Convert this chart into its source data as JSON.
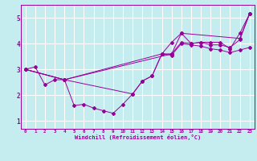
{
  "title": "",
  "xlabel": "Windchill (Refroidissement éolien,°C)",
  "background_color": "#c5edf0",
  "line_color": "#990099",
  "grid_color": "#ffffff",
  "xlim": [
    -0.5,
    23.5
  ],
  "ylim": [
    0.7,
    5.5
  ],
  "xticks": [
    0,
    1,
    2,
    3,
    4,
    5,
    6,
    7,
    8,
    9,
    10,
    11,
    12,
    13,
    14,
    15,
    16,
    17,
    18,
    19,
    20,
    21,
    22,
    23
  ],
  "yticks": [
    1,
    2,
    3,
    4,
    5
  ],
  "lines": [
    {
      "x": [
        0,
        1,
        2,
        3,
        4,
        5,
        6,
        7,
        8,
        9,
        10,
        11,
        12,
        13,
        14,
        15,
        16,
        17,
        18,
        19,
        20,
        21,
        22,
        23
      ],
      "y": [
        3.0,
        3.1,
        2.4,
        2.6,
        2.6,
        1.6,
        1.65,
        1.5,
        1.4,
        1.3,
        1.65,
        2.05,
        2.55,
        2.75,
        3.6,
        4.05,
        4.4,
        4.0,
        4.05,
        4.05,
        4.05,
        3.8,
        4.4,
        5.15
      ]
    },
    {
      "x": [
        0,
        4,
        11,
        12,
        13,
        14,
        15,
        16,
        17,
        18,
        19,
        20,
        21,
        22,
        23
      ],
      "y": [
        3.0,
        2.6,
        2.05,
        2.55,
        2.75,
        3.6,
        3.55,
        4.0,
        3.95,
        3.9,
        3.8,
        3.75,
        3.65,
        3.75,
        3.85
      ]
    },
    {
      "x": [
        0,
        4,
        14,
        15,
        16,
        17,
        18,
        19,
        20,
        21,
        22,
        23
      ],
      "y": [
        3.0,
        2.6,
        3.6,
        3.6,
        4.05,
        4.0,
        4.05,
        3.95,
        3.95,
        3.85,
        4.15,
        5.15
      ]
    },
    {
      "x": [
        0,
        4,
        15,
        16,
        22,
        23
      ],
      "y": [
        3.0,
        2.6,
        3.6,
        4.4,
        4.2,
        5.15
      ]
    }
  ]
}
